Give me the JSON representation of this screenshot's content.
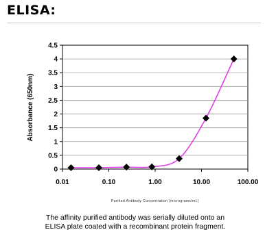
{
  "page": {
    "heading": "ELISA:",
    "caption_line1": "The affinity purified antibody was serially diluted onto an",
    "caption_line2": "ELISA plate coated with a recombinant protein fragment."
  },
  "chart_data": {
    "type": "scatter",
    "title": "",
    "xlabel": "Purified Antibody Concentration (micrograms/mL)",
    "ylabel": "Absorbance (650nm)",
    "xscale": "log",
    "xlim": [
      0.01,
      100
    ],
    "ylim": [
      0,
      4.5
    ],
    "xticks": [
      {
        "value": 0.01,
        "label": "0.01"
      },
      {
        "value": 0.1,
        "label": "0.10"
      },
      {
        "value": 1,
        "label": "1.00"
      },
      {
        "value": 10,
        "label": "10.00"
      },
      {
        "value": 100,
        "label": "100.00"
      }
    ],
    "yticks": [
      {
        "value": 0,
        "label": "0"
      },
      {
        "value": 0.5,
        "label": "0.5"
      },
      {
        "value": 1,
        "label": "1"
      },
      {
        "value": 1.5,
        "label": "1.5"
      },
      {
        "value": 2,
        "label": "2"
      },
      {
        "value": 2.5,
        "label": "2.5"
      },
      {
        "value": 3,
        "label": "3"
      },
      {
        "value": 3.5,
        "label": "3.5"
      },
      {
        "value": 4,
        "label": "4"
      },
      {
        "value": 4.5,
        "label": "4.5"
      }
    ],
    "grid": "horizontal",
    "series": [
      {
        "x": [
          0.0153,
          0.061,
          0.24,
          0.85,
          3.3,
          12.5,
          50
        ],
        "y": [
          0.05,
          0.05,
          0.07,
          0.08,
          0.38,
          1.85,
          4.0
        ],
        "marker": "diamond",
        "marker_color": "#000000",
        "fit_color": "#e040e8"
      }
    ]
  }
}
